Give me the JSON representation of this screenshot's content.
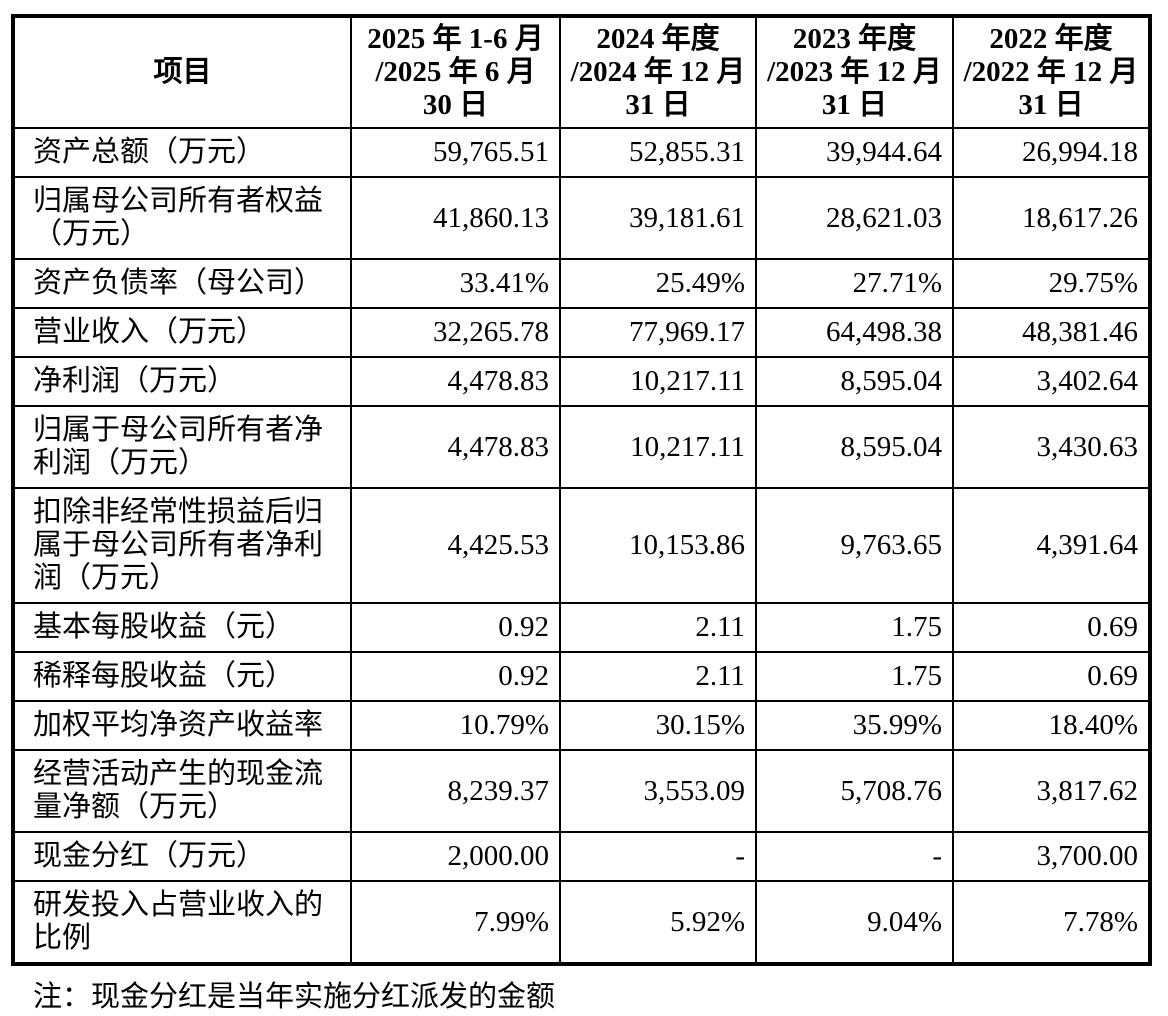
{
  "table": {
    "header": {
      "item_label": "项目",
      "periods": [
        "2025 年 1-6 月\n/2025 年 6 月\n30 日",
        "2024 年度\n/2024 年 12 月\n31 日",
        "2023 年度\n/2023 年 12 月\n31 日",
        "2022 年度\n/2022 年 12 月\n31 日"
      ]
    },
    "rows": [
      {
        "label": "资产总额（万元）",
        "values": [
          "59,765.51",
          "52,855.31",
          "39,944.64",
          "26,994.18"
        ]
      },
      {
        "label": "归属母公司所有者权益（万元）",
        "values": [
          "41,860.13",
          "39,181.61",
          "28,621.03",
          "18,617.26"
        ]
      },
      {
        "label": "资产负债率（母公司）",
        "values": [
          "33.41%",
          "25.49%",
          "27.71%",
          "29.75%"
        ]
      },
      {
        "label": "营业收入（万元）",
        "values": [
          "32,265.78",
          "77,969.17",
          "64,498.38",
          "48,381.46"
        ]
      },
      {
        "label": "净利润（万元）",
        "values": [
          "4,478.83",
          "10,217.11",
          "8,595.04",
          "3,402.64"
        ]
      },
      {
        "label": "归属于母公司所有者净利润（万元）",
        "values": [
          "4,478.83",
          "10,217.11",
          "8,595.04",
          "3,430.63"
        ]
      },
      {
        "label": "扣除非经常性损益后归属于母公司所有者净利润（万元）",
        "values": [
          "4,425.53",
          "10,153.86",
          "9,763.65",
          "4,391.64"
        ]
      },
      {
        "label": "基本每股收益（元）",
        "values": [
          "0.92",
          "2.11",
          "1.75",
          "0.69"
        ]
      },
      {
        "label": "稀释每股收益（元）",
        "values": [
          "0.92",
          "2.11",
          "1.75",
          "0.69"
        ]
      },
      {
        "label": "加权平均净资产收益率",
        "values": [
          "10.79%",
          "30.15%",
          "35.99%",
          "18.40%"
        ]
      },
      {
        "label": "经营活动产生的现金流量净额（万元）",
        "values": [
          "8,239.37",
          "3,553.09",
          "5,708.76",
          "3,817.62"
        ]
      },
      {
        "label": "现金分红（万元）",
        "values": [
          "2,000.00",
          "-",
          "-",
          "3,700.00"
        ]
      },
      {
        "label": "研发投入占营业收入的比例",
        "values": [
          "7.99%",
          "5.92%",
          "9.04%",
          "7.78%"
        ]
      }
    ],
    "note": "注：现金分红是当年实施分红派发的金额"
  }
}
